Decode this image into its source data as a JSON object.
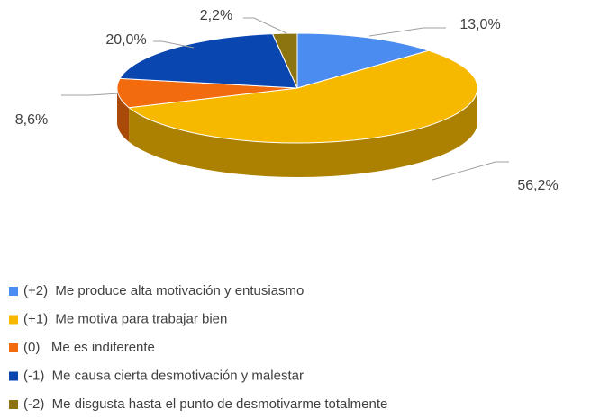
{
  "chart_data": {
    "type": "pie",
    "categories": [
      "(+2)  Me produce alta motivación y entusiasmo",
      "(+1)  Me motiva para trabajar bien",
      "(0)   Me es indiferente",
      "(-1)  Me causa cierta desmotivación y malestar",
      "(-2)  Me disgusta hasta el punto de desmotivarme totalmente"
    ],
    "values": [
      13.0,
      56.2,
      8.6,
      20.0,
      2.2
    ],
    "value_labels": [
      "13,0%",
      "56,2%",
      "8,6%",
      "20,0%",
      "2,2%"
    ],
    "colors": [
      "#4a8cf0",
      "#f7b800",
      "#f26b0f",
      "#0a46b0",
      "#8c7410"
    ],
    "legend": "bottom"
  }
}
